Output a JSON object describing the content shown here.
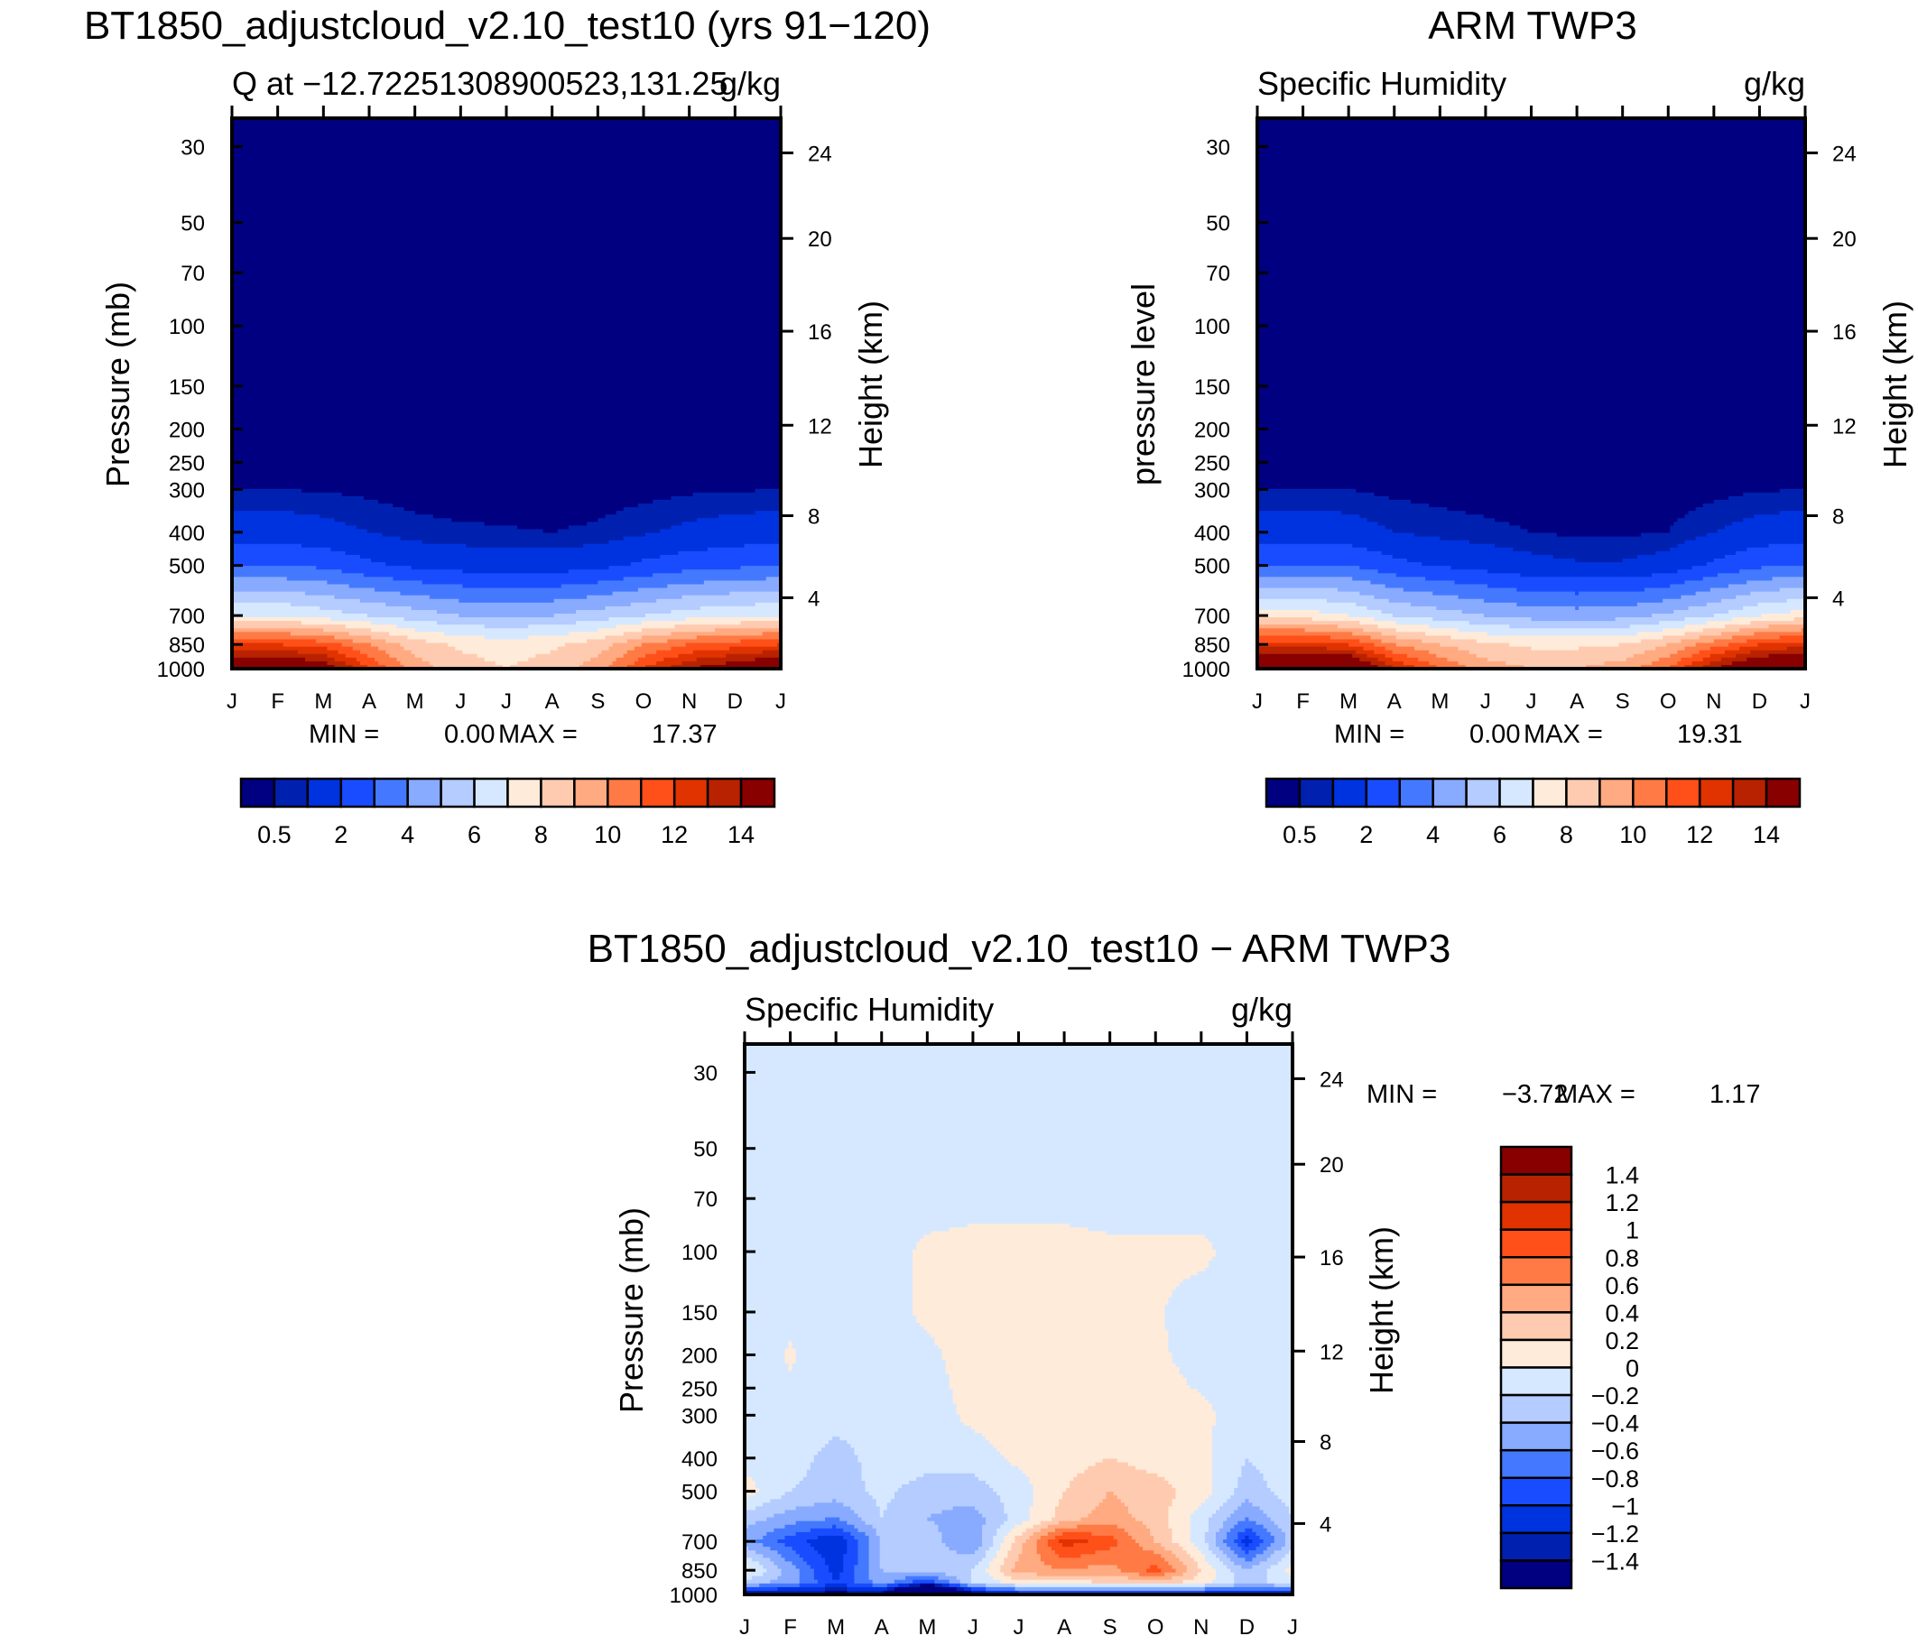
{
  "figure": {
    "top_left_title": "BT1850_adjustcloud_v2.10_test10 (yrs 91−120)",
    "top_right_title": "ARM TWP3",
    "bottom_title": "BT1850_adjustcloud_v2.10_test10 − ARM TWP3"
  },
  "chart_data": [
    {
      "type": "heatmap",
      "title": "BT1850_adjustcloud_v2.10_test10 (yrs 91−120)",
      "subtitle_left": "Q at −12.72251308900523,131.25",
      "subtitle_right": "g/kg",
      "ylabel": "Pressure (mb)",
      "ylabel_right": "Height (km)",
      "x_ticks": [
        "J",
        "F",
        "M",
        "A",
        "M",
        "J",
        "J",
        "A",
        "S",
        "O",
        "N",
        "D",
        "J"
      ],
      "pressure_ticks": [
        30,
        50,
        70,
        100,
        150,
        200,
        250,
        300,
        400,
        500,
        700,
        850,
        1000
      ],
      "height_ticks": [
        {
          "label": "24",
          "pressure": 31.3
        },
        {
          "label": "20",
          "pressure": 55.6
        },
        {
          "label": "16",
          "pressure": 103.7
        },
        {
          "label": "12",
          "pressure": 195
        },
        {
          "label": "8",
          "pressure": 358
        },
        {
          "label": "4",
          "pressure": 621
        }
      ],
      "pressure_range": [
        1000,
        24.8
      ],
      "levels": [
        1000,
        850,
        700,
        500,
        400,
        300,
        200,
        100,
        30
      ],
      "values": [
        [
          16,
          12,
          7,
          3,
          1.5,
          0.5,
          0.15,
          0.02,
          0
        ],
        [
          16,
          12,
          7,
          3,
          1.5,
          0.5,
          0.15,
          0.02,
          0
        ],
        [
          15,
          11.5,
          6.5,
          2.8,
          1.3,
          0.45,
          0.12,
          0.02,
          0
        ],
        [
          12,
          10,
          6,
          2.2,
          1.0,
          0.35,
          0.1,
          0.02,
          0
        ],
        [
          9.5,
          8.5,
          5.5,
          1.8,
          0.7,
          0.25,
          0.08,
          0.01,
          0
        ],
        [
          8.5,
          7.8,
          5,
          1.6,
          0.6,
          0.2,
          0.07,
          0.01,
          0
        ],
        [
          8,
          7.5,
          5,
          1.5,
          0.55,
          0.2,
          0.06,
          0.01,
          0
        ],
        [
          8.5,
          7.8,
          5,
          1.5,
          0.5,
          0.18,
          0.06,
          0.01,
          0
        ],
        [
          9.5,
          8.5,
          5.5,
          1.7,
          0.6,
          0.22,
          0.07,
          0.01,
          0
        ],
        [
          12,
          10,
          6,
          2.2,
          0.9,
          0.3,
          0.1,
          0.02,
          0
        ],
        [
          14,
          11,
          6.5,
          2.6,
          1.2,
          0.4,
          0.12,
          0.02,
          0
        ],
        [
          15,
          11.5,
          6.8,
          2.8,
          1.4,
          0.45,
          0.13,
          0.02,
          0
        ],
        [
          16,
          12,
          7,
          3,
          1.5,
          0.5,
          0.15,
          0.02,
          0
        ]
      ],
      "contour_levels": [
        0.5,
        1,
        2,
        3,
        4,
        5,
        6,
        7,
        8,
        9,
        10,
        11,
        12,
        13,
        14
      ],
      "colors": [
        "#000080",
        "#0020b0",
        "#0033e0",
        "#1a4cff",
        "#4479ff",
        "#88aaff",
        "#b4ccff",
        "#d6e8ff",
        "#ffebd9",
        "#ffcbb0",
        "#ffaa80",
        "#ff7a45",
        "#ff5019",
        "#e03300",
        "#b82200",
        "#880000"
      ],
      "colorbar": {
        "orientation": "horizontal",
        "labels": [
          "0.5",
          "2",
          "4",
          "6",
          "8",
          "10",
          "12",
          "14"
        ]
      },
      "stats": {
        "min_label": "MIN =",
        "min": "0.00",
        "max_label": "MAX =",
        "max": "17.37"
      }
    },
    {
      "type": "heatmap",
      "title": "ARM TWP3",
      "subtitle_left": "Specific Humidity",
      "subtitle_right": "g/kg",
      "ylabel": "pressure level",
      "ylabel_right": "Height (km)",
      "x_ticks": [
        "J",
        "F",
        "M",
        "A",
        "M",
        "J",
        "J",
        "A",
        "S",
        "O",
        "N",
        "D",
        "J"
      ],
      "pressure_ticks": [
        30,
        50,
        70,
        100,
        150,
        200,
        250,
        300,
        400,
        500,
        700,
        850,
        1000
      ],
      "height_ticks": [
        {
          "label": "24",
          "pressure": 31.3
        },
        {
          "label": "20",
          "pressure": 55.6
        },
        {
          "label": "16",
          "pressure": 103.7
        },
        {
          "label": "12",
          "pressure": 195
        },
        {
          "label": "8",
          "pressure": 358
        },
        {
          "label": "4",
          "pressure": 621
        }
      ],
      "pressure_range": [
        1000,
        24.8
      ],
      "levels": [
        1000,
        850,
        700,
        500,
        400,
        300,
        200,
        100,
        30
      ],
      "values": [
        [
          17,
          12.5,
          7.5,
          3,
          1.5,
          0.5,
          0.15,
          0.02,
          0
        ],
        [
          17,
          12.5,
          7.5,
          3,
          1.5,
          0.5,
          0.15,
          0.02,
          0
        ],
        [
          16.5,
          12,
          7,
          3,
          1.4,
          0.5,
          0.14,
          0.02,
          0
        ],
        [
          13,
          10,
          6,
          2.3,
          1.0,
          0.35,
          0.1,
          0.02,
          0
        ],
        [
          11,
          9,
          5.5,
          1.9,
          0.8,
          0.28,
          0.08,
          0.01,
          0
        ],
        [
          9.5,
          8.2,
          5,
          1.6,
          0.65,
          0.22,
          0.07,
          0.01,
          0
        ],
        [
          9,
          7.8,
          4.6,
          1.3,
          0.5,
          0.18,
          0.06,
          0.01,
          0
        ],
        [
          9,
          7.8,
          4.5,
          1.1,
          0.4,
          0.15,
          0.05,
          0.01,
          0
        ],
        [
          9.5,
          8,
          4.6,
          1.1,
          0.4,
          0.15,
          0.05,
          0.01,
          0
        ],
        [
          11,
          9,
          5.2,
          1.4,
          0.5,
          0.18,
          0.06,
          0.01,
          0
        ],
        [
          14,
          10.5,
          6,
          2.2,
          1.0,
          0.3,
          0.1,
          0.02,
          0
        ],
        [
          16,
          12,
          7,
          2.8,
          1.4,
          0.45,
          0.13,
          0.02,
          0
        ],
        [
          17,
          12.5,
          7.5,
          3,
          1.5,
          0.5,
          0.15,
          0.02,
          0
        ]
      ],
      "contour_levels": [
        0.5,
        1,
        2,
        3,
        4,
        5,
        6,
        7,
        8,
        9,
        10,
        11,
        12,
        13,
        14
      ],
      "colors": [
        "#000080",
        "#0020b0",
        "#0033e0",
        "#1a4cff",
        "#4479ff",
        "#88aaff",
        "#b4ccff",
        "#d6e8ff",
        "#ffebd9",
        "#ffcbb0",
        "#ffaa80",
        "#ff7a45",
        "#ff5019",
        "#e03300",
        "#b82200",
        "#880000"
      ],
      "colorbar": {
        "orientation": "horizontal",
        "labels": [
          "0.5",
          "2",
          "4",
          "6",
          "8",
          "10",
          "12",
          "14"
        ]
      },
      "stats": {
        "min_label": "MIN =",
        "min": "0.00",
        "max_label": "MAX =",
        "max": "19.31"
      }
    },
    {
      "type": "heatmap",
      "title": "BT1850_adjustcloud_v2.10_test10 − ARM TWP3",
      "subtitle_left": "Specific Humidity",
      "subtitle_right": "g/kg",
      "ylabel": "Pressure (mb)",
      "ylabel_right": "Height (km)",
      "x_ticks": [
        "J",
        "F",
        "M",
        "A",
        "M",
        "J",
        "J",
        "A",
        "S",
        "O",
        "N",
        "D",
        "J"
      ],
      "pressure_ticks": [
        30,
        50,
        70,
        100,
        150,
        200,
        250,
        300,
        400,
        500,
        700,
        850,
        1000
      ],
      "height_ticks": [
        {
          "label": "24",
          "pressure": 31.3
        },
        {
          "label": "20",
          "pressure": 55.6
        },
        {
          "label": "16",
          "pressure": 103.7
        },
        {
          "label": "12",
          "pressure": 195
        },
        {
          "label": "8",
          "pressure": 358
        },
        {
          "label": "4",
          "pressure": 621
        }
      ],
      "pressure_range": [
        1000,
        24.8
      ],
      "levels": [
        1000,
        925,
        850,
        700,
        600,
        500,
        400,
        300,
        200,
        150,
        100,
        70,
        30
      ],
      "values": [
        [
          -1.5,
          -0.3,
          0.1,
          -0.5,
          -0.3,
          0.1,
          -0.1,
          -0.1,
          -0.1,
          -0.1,
          -0.1,
          -0.1,
          -0.1
        ],
        [
          -1.5,
          -0.5,
          -0.5,
          -0.9,
          -0.5,
          -0.2,
          -0.1,
          -0.05,
          0.02,
          -0.05,
          -0.1,
          -0.1,
          -0.1
        ],
        [
          -1.5,
          -1.0,
          -1.1,
          -1.2,
          -0.6,
          -0.3,
          -0.3,
          -0.1,
          -0.1,
          -0.1,
          -0.1,
          -0.1,
          -0.1
        ],
        [
          -1.5,
          -0.5,
          -0.4,
          -0.4,
          -0.2,
          -0.15,
          -0.1,
          -0.1,
          -0.1,
          -0.1,
          -0.1,
          -0.1,
          -0.1
        ],
        [
          -3.7,
          -1.0,
          -0.3,
          -0.3,
          -0.4,
          -0.3,
          -0.1,
          -0.1,
          -0.05,
          0.05,
          0.05,
          -0.1,
          -0.1
        ],
        [
          -1.5,
          -0.2,
          -0.2,
          -0.6,
          -0.5,
          -0.3,
          -0.1,
          0.05,
          0.1,
          0.1,
          0.1,
          -0.1,
          -0.1
        ],
        [
          -1.2,
          0.1,
          0.5,
          0.3,
          -0.1,
          -0.1,
          0.05,
          0.1,
          0.1,
          0.1,
          0.1,
          -0.1,
          -0.1
        ],
        [
          -1.2,
          0.1,
          0.6,
          1.1,
          0.3,
          0.2,
          0.1,
          0.1,
          0.1,
          0.1,
          0.1,
          -0.1,
          -0.1
        ],
        [
          -1.2,
          0.2,
          0.5,
          0.9,
          0.5,
          0.4,
          0.2,
          0.1,
          0.1,
          0.1,
          0.05,
          -0.1,
          -0.1
        ],
        [
          -1.2,
          0.3,
          0.9,
          0.4,
          0.3,
          0.3,
          0.1,
          0.1,
          0.05,
          0.02,
          0.05,
          -0.1,
          -0.1
        ],
        [
          -1.2,
          0.1,
          0.2,
          -0.1,
          -0.1,
          0.1,
          0.05,
          0.05,
          -0.1,
          -0.1,
          0.05,
          -0.1,
          -0.1
        ],
        [
          -1.2,
          -0.3,
          -0.4,
          -1.1,
          -0.6,
          -0.3,
          -0.2,
          -0.1,
          -0.1,
          -0.1,
          -0.1,
          -0.1,
          -0.1
        ],
        [
          -1.2,
          -0.1,
          0.1,
          -0.3,
          -0.2,
          -0.1,
          -0.1,
          -0.1,
          -0.1,
          -0.1,
          -0.1,
          -0.1,
          -0.1
        ]
      ],
      "contour_levels": [
        -1.4,
        -1.2,
        -1,
        -0.8,
        -0.6,
        -0.4,
        -0.2,
        0,
        0.2,
        0.4,
        0.6,
        0.8,
        1,
        1.2,
        1.4
      ],
      "colors": [
        "#000080",
        "#0020b0",
        "#0033e0",
        "#1a4cff",
        "#4479ff",
        "#88aaff",
        "#b4ccff",
        "#d6e8ff",
        "#ffebd9",
        "#ffcbb0",
        "#ffaa80",
        "#ff7a45",
        "#ff5019",
        "#e03300",
        "#b82200",
        "#880000"
      ],
      "colorbar": {
        "orientation": "vertical",
        "labels": [
          "1.4",
          "1.2",
          "1",
          "0.8",
          "0.6",
          "0.4",
          "0.2",
          "0",
          "−0.2",
          "−0.4",
          "−0.6",
          "−0.8",
          "−1",
          "−1.2",
          "−1.4"
        ]
      },
      "stats": {
        "min_label": "MIN =",
        "min": "−3.72",
        "max_label": "MAX =",
        "max": "1.17"
      }
    }
  ]
}
